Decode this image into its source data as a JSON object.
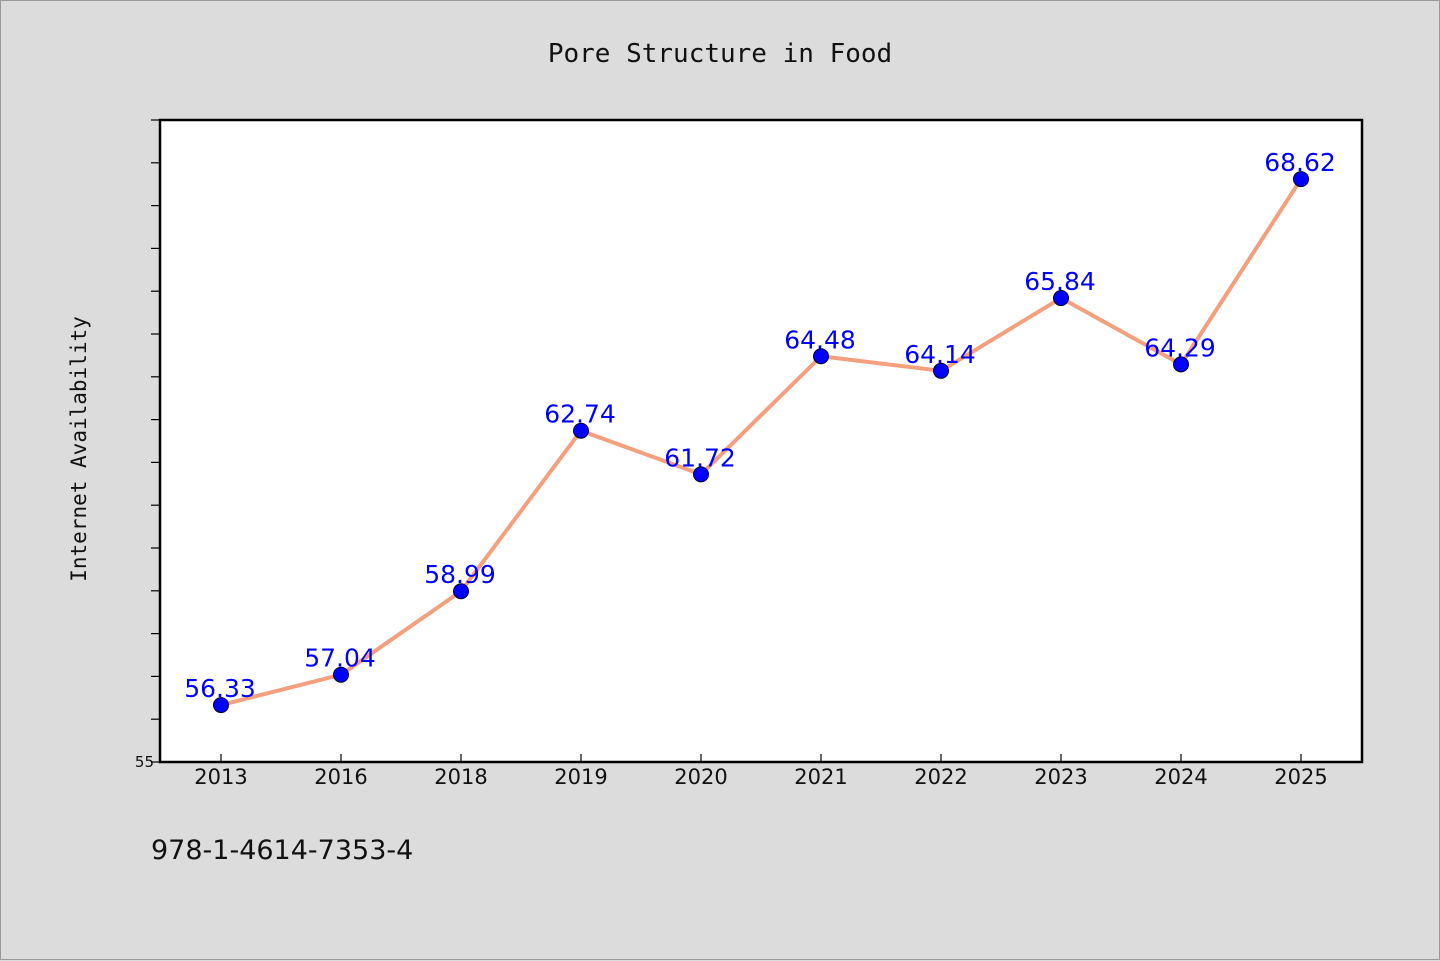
{
  "chart_data": {
    "type": "line",
    "title": "Pore Structure in Food",
    "xlabel": "",
    "ylabel": "Internet Availability",
    "categories": [
      "2013",
      "2016",
      "2018",
      "2019",
      "2020",
      "2021",
      "2022",
      "2023",
      "2024",
      "2025"
    ],
    "series": [
      {
        "values": [
          56.33,
          57.04,
          58.99,
          62.74,
          61.72,
          64.48,
          64.14,
          65.84,
          64.29,
          68.62
        ],
        "data_labels": [
          "56.33",
          "57.04",
          "58.99",
          "62.74",
          "61.72",
          "64.48",
          "64.14",
          "65.84",
          "64.29",
          "68.62"
        ]
      }
    ],
    "ylim": [
      55,
      70
    ],
    "y_tick_min_label": "55",
    "grid": false,
    "legend": "none"
  },
  "footer": {
    "isbn": "978-1-4614-7353-4"
  },
  "colors": {
    "background": "#dcdcdc",
    "plot_background": "#ffffff",
    "line": "#f4a07f",
    "marker": "#0000ff",
    "data_label": "#0000ff",
    "axis": "#000000"
  }
}
